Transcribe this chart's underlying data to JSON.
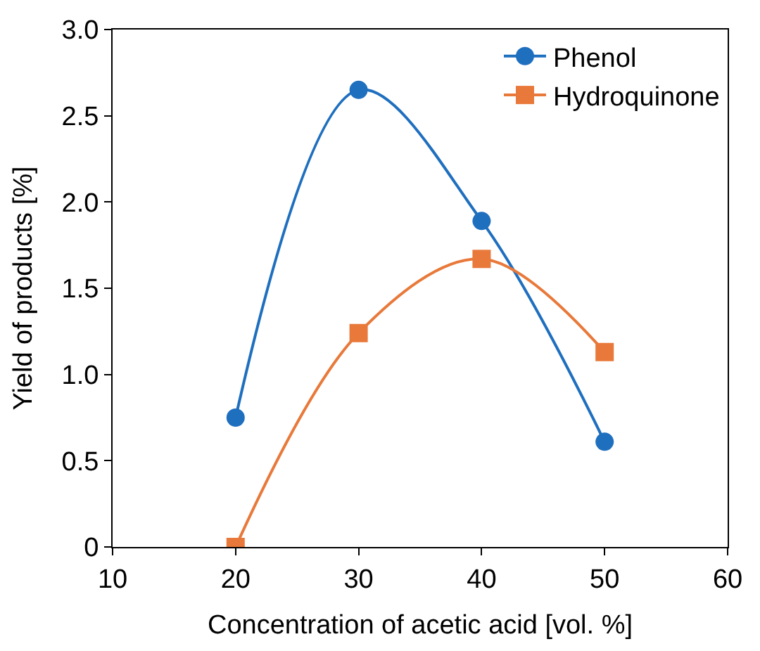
{
  "chart_data": {
    "type": "line",
    "xlabel": "Concentration of acetic acid [vol. %]",
    "ylabel": "Yield of products [%]",
    "x": [
      20,
      30,
      40,
      50
    ],
    "series": [
      {
        "name": "Phenol",
        "color": "#1f6fbf",
        "values": [
          0.75,
          2.65,
          1.89,
          0.61
        ],
        "marker": "circle"
      },
      {
        "name": "Hydroquinone",
        "color": "#e8793a",
        "values": [
          0,
          1.24,
          1.67,
          1.13
        ],
        "marker": "square"
      }
    ],
    "xlim": [
      10,
      60
    ],
    "xticks": [
      10,
      20,
      30,
      40,
      50,
      60
    ],
    "ylim": [
      0,
      3.0
    ],
    "yticks": [
      0,
      {
        "value": 0.5,
        "label": "0.5"
      },
      {
        "value": 1,
        "label": "1.0"
      },
      {
        "value": 1.5,
        "label": "1.5"
      },
      {
        "value": 2,
        "label": "2.0"
      },
      {
        "value": 2.5,
        "label": "2.5"
      },
      {
        "value": 3,
        "label": "3.0"
      }
    ],
    "legend": "top right",
    "line_style": "solid"
  }
}
